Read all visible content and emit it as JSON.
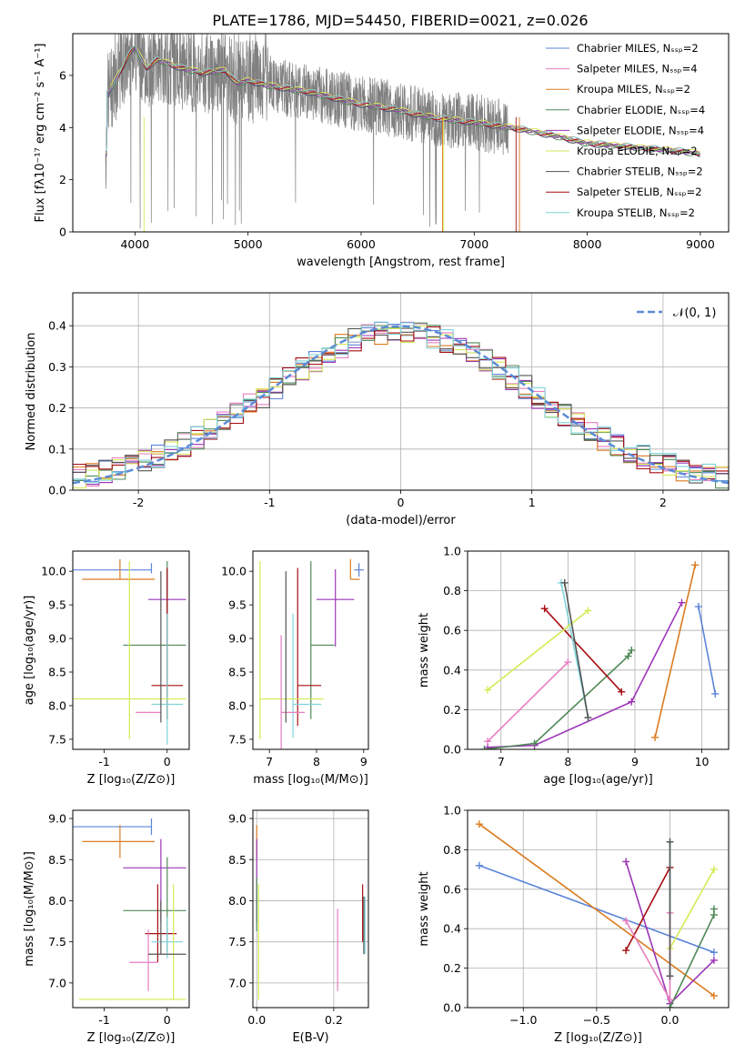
{
  "figure_title": "PLATE=1786, MJD=54450, FIBERID=0021, z=0.026",
  "colors": {
    "Chabrier MILES": "#5b84d9",
    "Salpeter MILES": "#e67ec0",
    "Kroupa MILES": "#db7b20",
    "Chabrier ELODIE": "#4f8a58",
    "Salpeter ELODIE": "#9c35b8",
    "Kroupa ELODIE": "#d5ea55",
    "Chabrier STELIB": "#555555",
    "Salpeter STELIB": "#a50e12",
    "Kroupa STELIB": "#7fd3db",
    "data_gray": "#808080"
  },
  "chart_data": [
    {
      "id": "spectrum",
      "type": "line",
      "xlabel": "wavelength [Angstrom, rest frame]",
      "ylabel": "Flux [fλ10⁻¹⁷ erg cm⁻² s⁻¹ A⁻¹]",
      "xlim": [
        3450,
        9250
      ],
      "ylim": [
        0,
        7.6
      ],
      "xticks": [
        4000,
        5000,
        6000,
        7000,
        8000,
        9000
      ],
      "yticks": [
        0,
        2,
        4,
        6
      ],
      "legend_position": "top-right",
      "legend": [
        "Chabrier MILES, Nₛₛₚ=2",
        "Salpeter MILES, Nₛₛₚ=4",
        "Kroupa MILES, Nₛₛₚ=2",
        "Chabrier ELODIE, Nₛₛₚ=4",
        "Salpeter ELODIE, Nₛₛₚ=4",
        "Kroupa ELODIE, Nₛₛₚ=2",
        "Chabrier STELIB, Nₛₛₚ=2",
        "Salpeter STELIB, Nₛₛₚ=2",
        "Kroupa STELIB, Nₛₛₚ=2"
      ],
      "model_continuum": {
        "x": [
          3750,
          3850,
          3950,
          4000,
          4100,
          4200,
          4400,
          4600,
          4800,
          4900,
          5000,
          5200,
          5500,
          5800,
          6000,
          6300,
          6500,
          6700,
          7000,
          7400,
          7700,
          8000,
          8400,
          8800,
          9000
        ],
        "y": [
          5.2,
          6.0,
          6.8,
          7.1,
          6.3,
          6.6,
          6.3,
          6.1,
          6.2,
          5.7,
          5.8,
          5.6,
          5.4,
          5.1,
          4.9,
          4.7,
          4.5,
          4.35,
          4.2,
          3.95,
          3.7,
          3.4,
          3.25,
          3.1,
          3.0
        ]
      }
    },
    {
      "id": "residuals",
      "type": "line",
      "xlabel": "(data-model)/error",
      "ylabel": "Normed distribution",
      "xlim": [
        -2.5,
        2.5
      ],
      "ylim": [
        0,
        0.48
      ],
      "xticks": [
        -2,
        -1,
        0,
        1,
        2
      ],
      "yticks": [
        0.0,
        0.1,
        0.2,
        0.3,
        0.4
      ],
      "grid": true,
      "legend_position": "top-right",
      "legend": [
        "𝒩(0, 1)"
      ],
      "reference": "normal(0,1), dashed"
    },
    {
      "id": "age-vs-Z",
      "type": "scatter",
      "xlabel": "Z [log₁₀(Z/Z⊙)]",
      "ylabel": "age  [log₁₀(age/yr)]",
      "xlim": [
        -1.5,
        0.35
      ],
      "ylim": [
        7.35,
        10.3
      ],
      "xticks": [
        -1,
        0
      ],
      "yticks": [
        7.5,
        8.0,
        8.5,
        9.0,
        9.5,
        10.0
      ],
      "points": [
        {
          "model": "Chabrier MILES",
          "x": -0.25,
          "y": 10.02,
          "xerr": [
            1.4,
            0
          ],
          "yerr": [
            0.05,
            0.1
          ]
        },
        {
          "model": "Kroupa MILES",
          "x": -0.75,
          "y": 9.88,
          "xerr": [
            0.6,
            0.55
          ],
          "yerr": [
            0.0,
            0.3
          ]
        },
        {
          "model": "Salpeter ELODIE",
          "x": 0.0,
          "y": 9.58,
          "xerr": [
            0.3,
            0.3
          ],
          "yerr": [
            0.7,
            0.45
          ]
        },
        {
          "model": "Chabrier ELODIE",
          "x": 0.0,
          "y": 8.9,
          "xerr": [
            0.7,
            0.3
          ],
          "yerr": [
            1.1,
            1.25
          ]
        },
        {
          "model": "Salpeter STELIB",
          "x": 0.0,
          "y": 8.3,
          "xerr": [
            0.25,
            0.25
          ],
          "yerr": [
            0.5,
            1.75
          ]
        },
        {
          "model": "Kroupa STELIB",
          "x": 0.0,
          "y": 8.02,
          "xerr": [
            0.25,
            0.25
          ],
          "yerr": [
            0.6,
            1.35
          ]
        },
        {
          "model": "Kroupa ELODIE",
          "x": -0.6,
          "y": 8.1,
          "xerr": [
            0.9,
            0.9
          ],
          "yerr": [
            0.6,
            2.05
          ]
        },
        {
          "model": "Salpeter MILES",
          "x": -0.3,
          "y": 7.9,
          "xerr": [
            0.2,
            0.2
          ],
          "yerr": [
            0.0,
            0.0
          ]
        },
        {
          "model": "Chabrier STELIB",
          "x": -0.1,
          "y": 7.9,
          "xerr": [
            0.0,
            0.0
          ],
          "yerr": [
            0.15,
            2.1
          ]
        }
      ]
    },
    {
      "id": "age-vs-mass",
      "type": "scatter",
      "xlabel": "mass [log₁₀(M/M⊙)]",
      "ylabel": "",
      "xlim": [
        6.65,
        9.1
      ],
      "ylim": [
        7.35,
        10.3
      ],
      "xticks": [
        7,
        8,
        9
      ],
      "yticks": [
        7.5,
        8.0,
        8.5,
        9.0,
        9.5,
        10.0
      ],
      "points": [
        {
          "model": "Chabrier MILES",
          "x": 8.9,
          "y": 10.02,
          "xerr": [
            0.1,
            0.1
          ],
          "yerr": [
            0.1,
            0.1
          ]
        },
        {
          "model": "Kroupa MILES",
          "x": 8.72,
          "y": 9.88,
          "xerr": [
            0.0,
            0.2
          ],
          "yerr": [
            0.0,
            0.3
          ]
        },
        {
          "model": "Salpeter ELODIE",
          "x": 8.4,
          "y": 9.58,
          "xerr": [
            0.4,
            0.4
          ],
          "yerr": [
            0.7,
            0.45
          ]
        },
        {
          "model": "Chabrier ELODIE",
          "x": 7.88,
          "y": 8.9,
          "xerr": [
            0.0,
            0.5
          ],
          "yerr": [
            1.1,
            1.25
          ]
        },
        {
          "model": "Salpeter STELIB",
          "x": 7.6,
          "y": 8.3,
          "xerr": [
            0.0,
            0.5
          ],
          "yerr": [
            0.6,
            1.75
          ]
        },
        {
          "model": "Kroupa STELIB",
          "x": 7.5,
          "y": 8.02,
          "xerr": [
            0.0,
            0.6
          ],
          "yerr": [
            0.5,
            1.35
          ]
        },
        {
          "model": "Kroupa ELODIE",
          "x": 6.8,
          "y": 8.1,
          "xerr": [
            0.0,
            1.35
          ],
          "yerr": [
            0.6,
            2.05
          ]
        },
        {
          "model": "Salpeter MILES",
          "x": 7.25,
          "y": 7.9,
          "xerr": [
            0.0,
            0.5
          ],
          "yerr": [
            0.6,
            1.15
          ]
        },
        {
          "model": "Chabrier STELIB",
          "x": 7.35,
          "y": 7.9,
          "xerr": [
            0.0,
            0.0
          ],
          "yerr": [
            0.15,
            2.1
          ]
        }
      ]
    },
    {
      "id": "weight-vs-age",
      "type": "line",
      "xlabel": "age  [log₁₀(age/yr)]",
      "ylabel": "mass weight",
      "xlim": [
        6.5,
        10.4
      ],
      "ylim": [
        0,
        1.0
      ],
      "xticks": [
        7,
        8,
        9,
        10
      ],
      "yticks": [
        0.0,
        0.2,
        0.4,
        0.6,
        0.8,
        1.0
      ],
      "grid": true,
      "series": [
        {
          "model": "Chabrier MILES",
          "x": [
            9.95,
            10.2
          ],
          "y": [
            0.72,
            0.28
          ]
        },
        {
          "model": "Kroupa MILES",
          "x": [
            9.3,
            9.9
          ],
          "y": [
            0.06,
            0.93
          ]
        },
        {
          "model": "Salpeter ELODIE",
          "x": [
            6.8,
            7.5,
            8.95,
            9.7
          ],
          "y": [
            0.01,
            0.02,
            0.24,
            0.74
          ]
        },
        {
          "model": "Chabrier ELODIE",
          "x": [
            6.75,
            7.5,
            8.9,
            8.95
          ],
          "y": [
            0.0,
            0.03,
            0.47,
            0.5
          ]
        },
        {
          "model": "Salpeter STELIB",
          "x": [
            7.65,
            8.8
          ],
          "y": [
            0.71,
            0.29
          ]
        },
        {
          "model": "Kroupa STELIB",
          "x": [
            7.9,
            8.3
          ],
          "y": [
            0.84,
            0.16
          ]
        },
        {
          "model": "Kroupa ELODIE",
          "x": [
            6.8,
            8.3
          ],
          "y": [
            0.3,
            0.7
          ]
        },
        {
          "model": "Salpeter MILES",
          "x": [
            6.8,
            8.0
          ],
          "y": [
            0.04,
            0.44
          ]
        },
        {
          "model": "Chabrier STELIB",
          "x": [
            7.95,
            8.3
          ],
          "y": [
            0.84,
            0.16
          ]
        }
      ]
    },
    {
      "id": "mass-vs-Z",
      "type": "scatter",
      "xlabel": "Z [log₁₀(Z/Z⊙)]",
      "ylabel": "mass [log₁₀(M/M⊙)]",
      "xlim": [
        -1.5,
        0.35
      ],
      "ylim": [
        6.7,
        9.1
      ],
      "xticks": [
        -1,
        0
      ],
      "yticks": [
        7.0,
        7.5,
        8.0,
        8.5,
        9.0
      ],
      "points": [
        {
          "model": "Chabrier MILES",
          "x": -0.25,
          "y": 8.9,
          "xerr": [
            1.4,
            0
          ],
          "yerr": [
            0.1,
            0.1
          ]
        },
        {
          "model": "Kroupa MILES",
          "x": -0.75,
          "y": 8.72,
          "xerr": [
            0.6,
            0.55
          ],
          "yerr": [
            0.2,
            0.2
          ]
        },
        {
          "model": "Salpeter ELODIE",
          "x": -0.1,
          "y": 8.4,
          "xerr": [
            0.6,
            0.4
          ],
          "yerr": [
            0.65,
            0.35
          ]
        },
        {
          "model": "Chabrier ELODIE",
          "x": 0.0,
          "y": 7.88,
          "xerr": [
            0.7,
            0.3
          ],
          "yerr": [
            0.5,
            0.65
          ]
        },
        {
          "model": "Salpeter STELIB",
          "x": -0.15,
          "y": 7.6,
          "xerr": [
            0.2,
            0.3
          ],
          "yerr": [
            0.35,
            0.6
          ]
        },
        {
          "model": "Kroupa STELIB",
          "x": 0.0,
          "y": 7.5,
          "xerr": [
            0.25,
            0.25
          ],
          "yerr": [
            0.2,
            0.3
          ]
        },
        {
          "model": "Kroupa ELODIE",
          "x": 0.1,
          "y": 6.8,
          "xerr": [
            1.5,
            0.2
          ],
          "yerr": [
            0.0,
            1.4
          ]
        },
        {
          "model": "Salpeter MILES",
          "x": -0.3,
          "y": 7.25,
          "xerr": [
            0.3,
            0.15
          ],
          "yerr": [
            0.35,
            0.4
          ]
        },
        {
          "model": "Chabrier STELIB",
          "x": -0.1,
          "y": 7.35,
          "xerr": [
            0.2,
            0.4
          ],
          "yerr": [
            0.0,
            0.65
          ]
        }
      ]
    },
    {
      "id": "mass-vs-EBV",
      "type": "scatter",
      "xlabel": "E(B-V)",
      "ylabel": "",
      "xlim": [
        -0.01,
        0.29
      ],
      "ylim": [
        6.7,
        9.1
      ],
      "xticks": [
        0.0,
        0.2
      ],
      "yticks": [
        7.0,
        7.5,
        8.0,
        8.5,
        9.0
      ],
      "grid": true,
      "points": [
        {
          "model": "Kroupa MILES",
          "x": 0.0,
          "y": 8.72,
          "yerr": [
            0.2,
            0.2
          ]
        },
        {
          "model": "Salpeter ELODIE",
          "x": 0.0,
          "y": 8.4,
          "yerr": [
            0.65,
            0.35
          ]
        },
        {
          "model": "Chabrier ELODIE",
          "x": 0.0,
          "y": 7.88,
          "yerr": [
            0.25,
            0.4
          ]
        },
        {
          "model": "Kroupa ELODIE",
          "x": 0.005,
          "y": 7.5,
          "yerr": [
            0.7,
            0.7
          ]
        },
        {
          "model": "Salpeter MILES",
          "x": 0.21,
          "y": 7.4,
          "yerr": [
            0.5,
            0.5
          ]
        },
        {
          "model": "Salpeter STELIB",
          "x": 0.275,
          "y": 7.85,
          "yerr": [
            0.35,
            0.35
          ]
        },
        {
          "model": "Chabrier STELIB",
          "x": 0.278,
          "y": 7.7,
          "yerr": [
            0.35,
            0.35
          ]
        },
        {
          "model": "Kroupa STELIB",
          "x": 0.281,
          "y": 7.7,
          "yerr": [
            0.35,
            0.35
          ]
        }
      ]
    },
    {
      "id": "weight-vs-Z",
      "type": "line",
      "xlabel": "Z [log₁₀(Z/Z⊙)]",
      "ylabel": "mass weight",
      "xlim": [
        -1.38,
        0.4
      ],
      "ylim": [
        0,
        1.0
      ],
      "xticks": [
        -1.0,
        -0.5,
        0.0
      ],
      "yticks": [
        0.0,
        0.2,
        0.4,
        0.6,
        0.8,
        1.0
      ],
      "grid": true,
      "series": [
        {
          "model": "Chabrier MILES",
          "x": [
            -1.3,
            0.3
          ],
          "y": [
            0.72,
            0.28
          ]
        },
        {
          "model": "Kroupa MILES",
          "x": [
            -1.3,
            0.3
          ],
          "y": [
            0.93,
            0.06
          ]
        },
        {
          "model": "Salpeter ELODIE",
          "x": [
            -0.3,
            0.0,
            0.3
          ],
          "y": [
            0.74,
            0.02,
            0.24
          ]
        },
        {
          "model": "Chabrier ELODIE",
          "x": [
            0.0,
            0.3,
            0.3
          ],
          "y": [
            0.0,
            0.47,
            0.5
          ]
        },
        {
          "model": "Salpeter STELIB",
          "x": [
            -0.3,
            0.0
          ],
          "y": [
            0.29,
            0.71
          ]
        },
        {
          "model": "Kroupa STELIB",
          "x": [
            0.0,
            0.0
          ],
          "y": [
            0.84,
            0.16
          ]
        },
        {
          "model": "Kroupa ELODIE",
          "x": [
            0.0,
            0.3
          ],
          "y": [
            0.3,
            0.7
          ]
        },
        {
          "model": "Salpeter MILES",
          "x": [
            -0.3,
            0.0,
            0.0
          ],
          "y": [
            0.44,
            0.04,
            0.48
          ]
        },
        {
          "model": "Chabrier STELIB",
          "x": [
            0.0,
            0.0
          ],
          "y": [
            0.84,
            0.16
          ]
        }
      ]
    }
  ]
}
